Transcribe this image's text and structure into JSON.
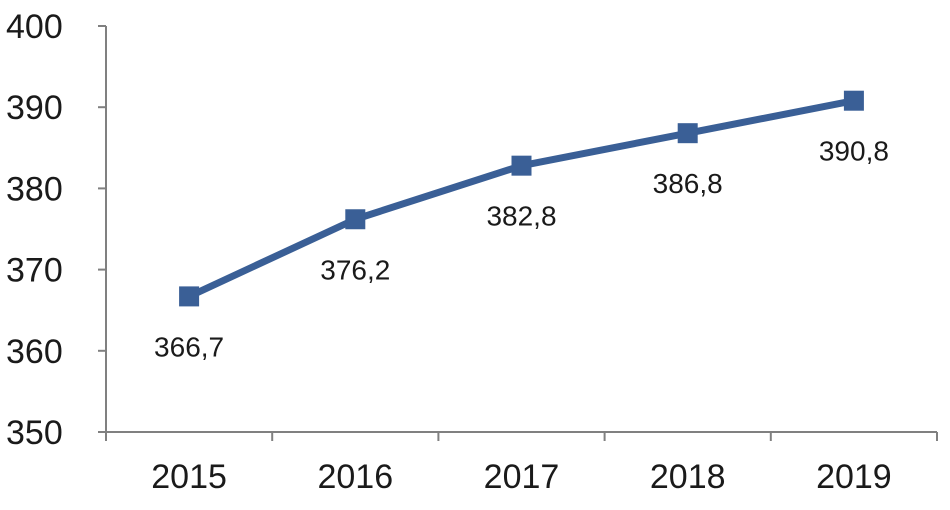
{
  "chart_data": {
    "type": "line",
    "categories": [
      "2015",
      "2016",
      "2017",
      "2018",
      "2019"
    ],
    "series": [
      {
        "values": [
          366.7,
          376.2,
          382.8,
          386.8,
          390.8
        ],
        "data_labels": [
          "366,7",
          "376,2",
          "382,8",
          "386,8",
          "390,8"
        ],
        "color": "#3a5f96",
        "marker": "square"
      }
    ],
    "ylim": [
      350,
      400
    ],
    "y_ticks": [
      {
        "value": 350,
        "label": "350"
      },
      {
        "value": 360,
        "label": "360"
      },
      {
        "value": 370,
        "label": "370"
      },
      {
        "value": 380,
        "label": "380"
      },
      {
        "value": 390,
        "label": "390"
      },
      {
        "value": 400,
        "label": "400"
      }
    ],
    "grid": false,
    "legend": "none"
  }
}
